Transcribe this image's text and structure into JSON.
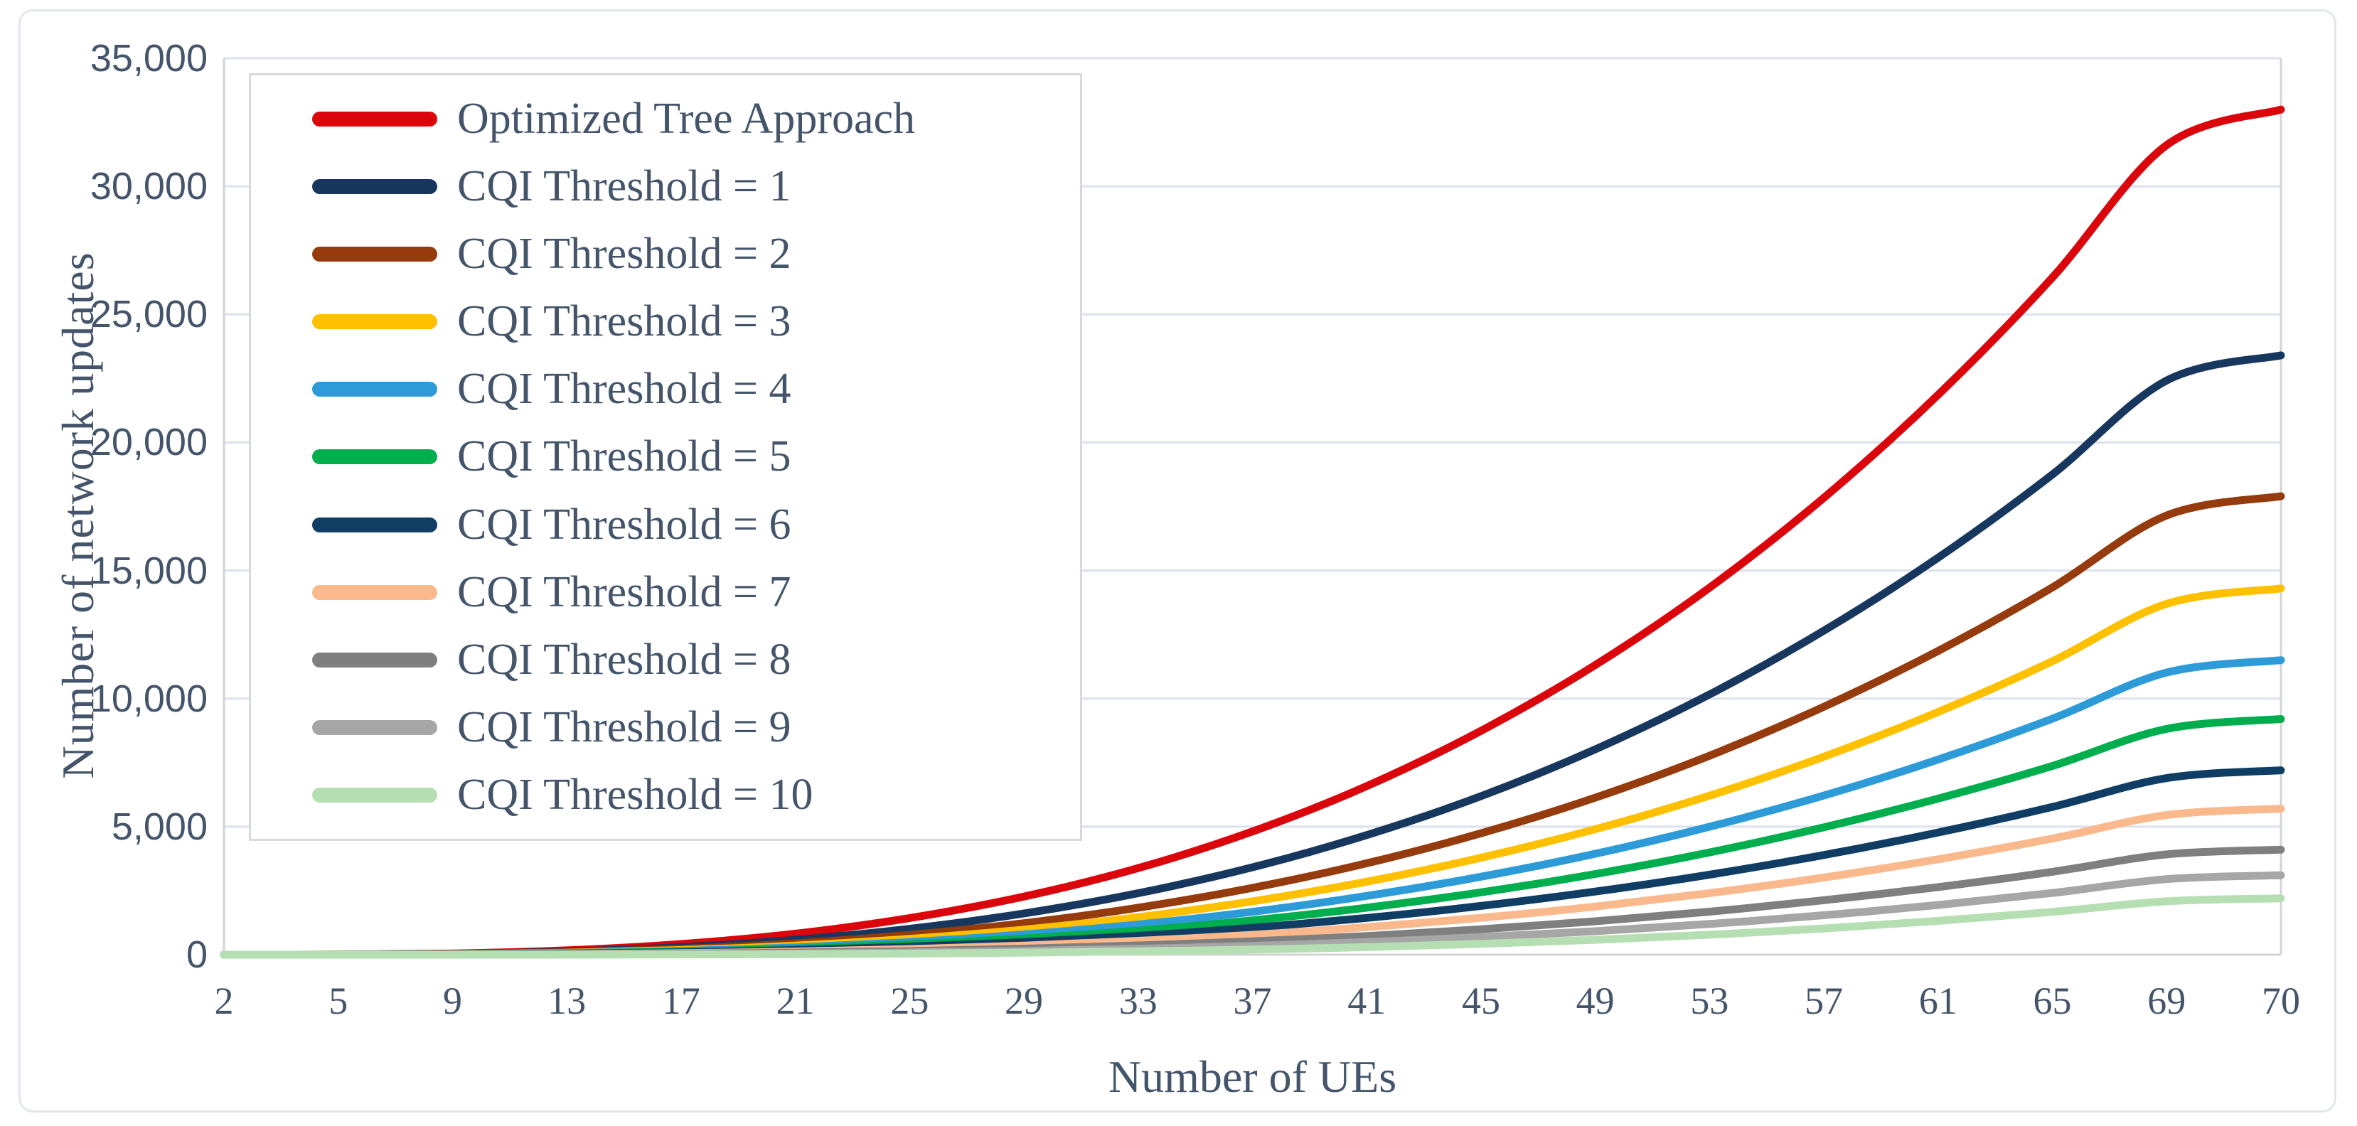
{
  "chart_data": {
    "type": "line",
    "title": "",
    "xlabel": "Number of UEs",
    "ylabel": "Number of network updates",
    "x": [
      2,
      5,
      9,
      13,
      17,
      21,
      25,
      29,
      33,
      37,
      41,
      45,
      49,
      53,
      57,
      61,
      65,
      69,
      70
    ],
    "x_tick_labels": [
      "2",
      "5",
      "9",
      "13",
      "17",
      "21",
      "25",
      "29",
      "33",
      "37",
      "41",
      "45",
      "49",
      "53",
      "57",
      "61",
      "65",
      "69",
      "70"
    ],
    "y_ticks": [
      0,
      5000,
      10000,
      15000,
      20000,
      25000,
      30000,
      35000
    ],
    "y_tick_labels": [
      "0",
      "5,000",
      "10,000",
      "15,000",
      "20,000",
      "25,000",
      "30,000",
      "35,000"
    ],
    "ylim": [
      0,
      35000
    ],
    "grid": "horizontal",
    "legend_position": "top-left-inside",
    "series": [
      {
        "name": "Optimized Tree Approach",
        "color": "#DB050C",
        "values": [
          0,
          4,
          45,
          170,
          415,
          820,
          1430,
          2270,
          3380,
          4810,
          6580,
          8740,
          11310,
          14330,
          17840,
          21860,
          26440,
          31610,
          33000
        ]
      },
      {
        "name": "CQI Threshold = 1",
        "color": "#17375E",
        "values": [
          0,
          3,
          32,
          120,
          295,
          580,
          1010,
          1610,
          2400,
          3410,
          4670,
          6190,
          8020,
          10160,
          12650,
          15500,
          18750,
          22420,
          23400
        ]
      },
      {
        "name": "CQI Threshold = 2",
        "color": "#953B0D",
        "values": [
          0,
          2,
          24,
          90,
          225,
          445,
          775,
          1230,
          1835,
          2610,
          3570,
          4740,
          6130,
          7770,
          9680,
          11860,
          14340,
          17150,
          17900
        ]
      },
      {
        "name": "CQI Threshold = 3",
        "color": "#FFC000",
        "values": [
          0,
          2,
          20,
          75,
          180,
          355,
          620,
          980,
          1465,
          2085,
          2850,
          3785,
          4900,
          6210,
          7730,
          9475,
          11460,
          13700,
          14300
        ]
      },
      {
        "name": "CQI Threshold = 4",
        "color": "#2D9BD8",
        "values": [
          0,
          1,
          16,
          60,
          145,
          285,
          495,
          790,
          1180,
          1675,
          2295,
          3045,
          3940,
          4995,
          6215,
          7620,
          9215,
          11015,
          11500
        ]
      },
      {
        "name": "CQI Threshold = 5",
        "color": "#00AE4E",
        "values": [
          0,
          1,
          13,
          47,
          115,
          230,
          400,
          630,
          940,
          1340,
          1835,
          2435,
          3150,
          3995,
          4975,
          6095,
          7370,
          8815,
          9200
        ]
      },
      {
        "name": "CQI Threshold = 6",
        "color": "#0F3D64",
        "values": [
          0,
          1,
          10,
          37,
          90,
          180,
          310,
          495,
          735,
          1050,
          1435,
          1905,
          2465,
          3125,
          3890,
          4770,
          5770,
          6895,
          7200
        ]
      },
      {
        "name": "CQI Threshold = 7",
        "color": "#FAB98D",
        "values": [
          0,
          0,
          6,
          25,
          60,
          125,
          220,
          355,
          540,
          775,
          1075,
          1440,
          1880,
          2405,
          3015,
          3725,
          4535,
          5450,
          5700
        ]
      },
      {
        "name": "CQI Threshold = 8",
        "color": "#7F7F7F",
        "values": [
          0,
          0,
          4,
          15,
          40,
          80,
          140,
          235,
          360,
          525,
          730,
          990,
          1305,
          1680,
          2125,
          2640,
          3235,
          3915,
          4100
        ]
      },
      {
        "name": "CQI Threshold = 9",
        "color": "#A6A6A6",
        "values": [
          0,
          0,
          2,
          8,
          20,
          45,
          85,
          145,
          230,
          345,
          495,
          685,
          915,
          1200,
          1540,
          1940,
          2410,
          2950,
          3100
        ]
      },
      {
        "name": "CQI Threshold = 10",
        "color": "#B5DFB2",
        "values": [
          0,
          0,
          1,
          3,
          10,
          22,
          44,
          80,
          130,
          200,
          295,
          425,
          580,
          780,
          1025,
          1320,
          1670,
          2085,
          2200
        ]
      }
    ]
  },
  "axes": {
    "x_title": "Number of UEs",
    "y_title": "Number of network updates"
  },
  "colors": {
    "text": "#44546A",
    "gridline": "#DBE2EE",
    "axis_line": "#D3D3D3",
    "legend_border": "#D9D9D9",
    "figure_border": "#E3E7EB",
    "background": "#FFFFFF"
  }
}
